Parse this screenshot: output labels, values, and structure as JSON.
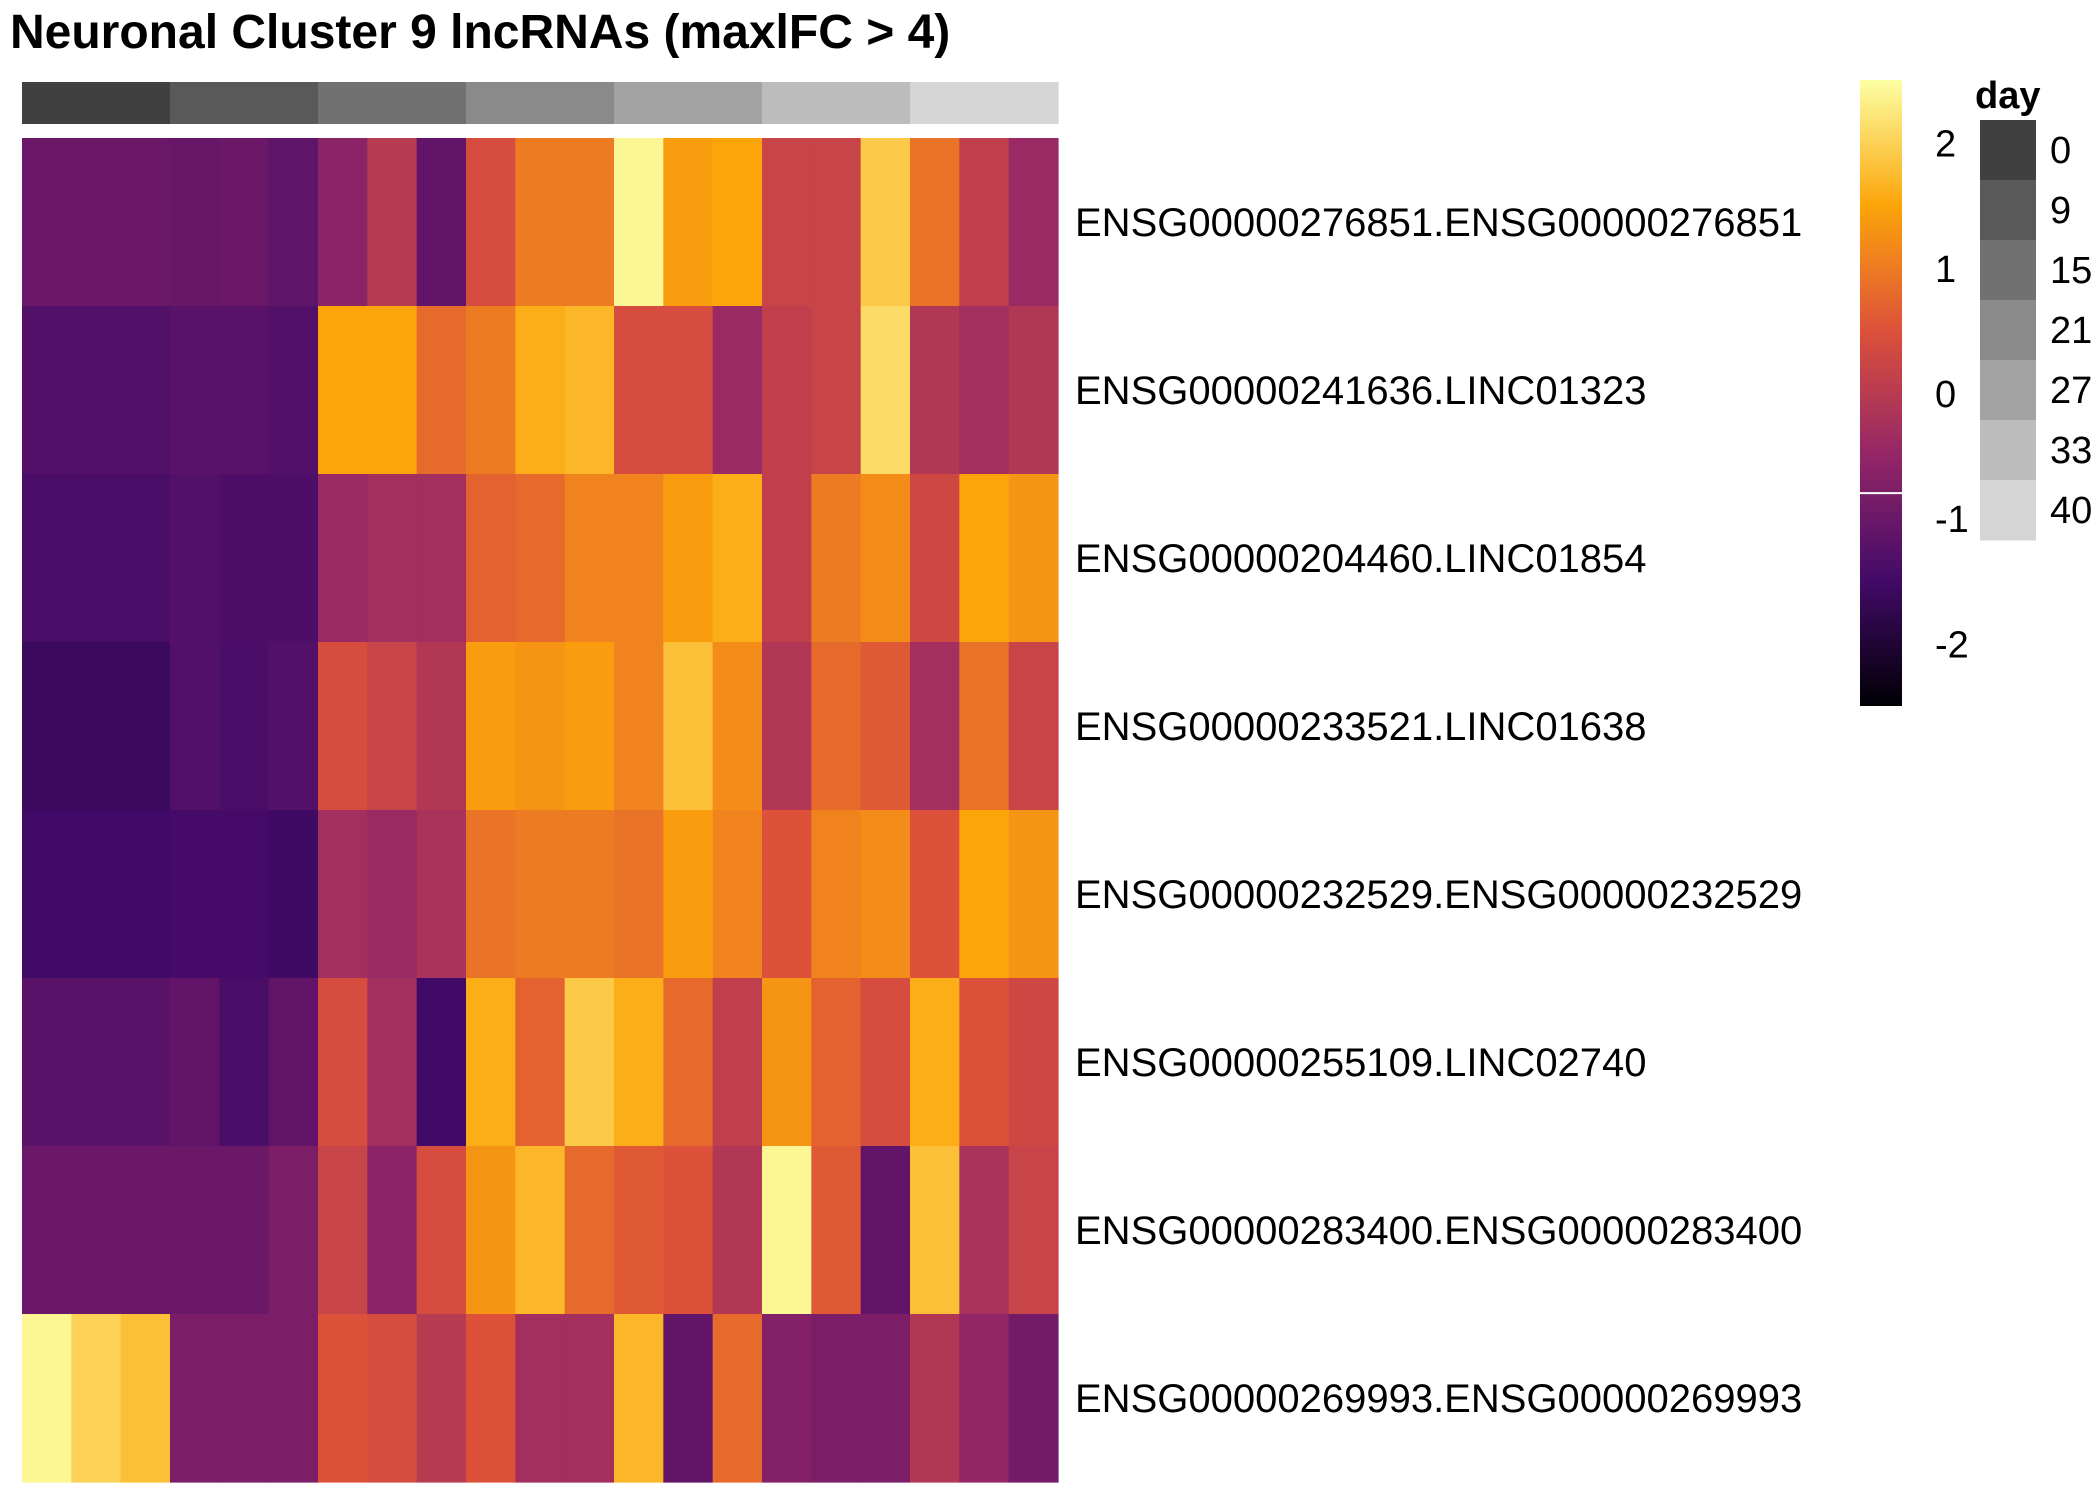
{
  "chart_data": {
    "type": "heatmap",
    "title": "Neuronal Cluster 9 lncRNAs (maxlFC > 4)",
    "colorscale": [
      "#000004",
      "#420a68",
      "#932667",
      "#dd513a",
      "#fca50a",
      "#fcffa4"
    ],
    "color_legend": {
      "range": [
        -2.5,
        2.5
      ],
      "ticks": [
        2,
        1,
        0,
        -1,
        -2
      ],
      "tick_labels": [
        "2",
        "1",
        "0",
        "-1",
        "-2"
      ]
    },
    "day_annotation": {
      "title": "day",
      "levels": [
        "0",
        "9",
        "15",
        "21",
        "27",
        "33",
        "40"
      ],
      "colors": [
        "#404040",
        "#595959",
        "#717171",
        "#8a8a8a",
        "#a3a3a3",
        "#bcbcbc",
        "#d5d5d5"
      ],
      "column_days": [
        "0",
        "0",
        "0",
        "9",
        "9",
        "9",
        "15",
        "15",
        "15",
        "21",
        "21",
        "21",
        "27",
        "27",
        "27",
        "33",
        "33",
        "33",
        "40",
        "40",
        "40"
      ]
    },
    "rows": [
      "ENSG00000276851.ENSG00000276851",
      "ENSG00000241636.LINC01323",
      "ENSG00000204460.LINC01854",
      "ENSG00000233521.LINC01638",
      "ENSG00000232529.ENSG00000232529",
      "ENSG00000255109.LINC02740",
      "ENSG00000283400.ENSG00000283400",
      "ENSG00000269993.ENSG00000269993"
    ],
    "values": [
      [
        -1.0,
        -1.0,
        -1.0,
        -1.05,
        -1.0,
        -1.15,
        -0.6,
        0.0,
        -1.1,
        0.4,
        1.0,
        1.0,
        2.4,
        1.4,
        1.5,
        0.2,
        0.2,
        1.9,
        0.9,
        0.1,
        -0.4
      ],
      [
        -1.3,
        -1.3,
        -1.3,
        -1.2,
        -1.2,
        -1.3,
        1.5,
        1.5,
        0.8,
        1.0,
        1.6,
        1.7,
        0.4,
        0.4,
        -0.4,
        0.1,
        0.2,
        2.1,
        -0.1,
        -0.3,
        -0.1
      ],
      [
        -1.4,
        -1.4,
        -1.4,
        -1.3,
        -1.35,
        -1.35,
        -0.4,
        -0.3,
        -0.3,
        0.7,
        0.8,
        1.1,
        1.1,
        1.4,
        1.6,
        0.1,
        1.0,
        1.2,
        0.3,
        1.5,
        1.3
      ],
      [
        -1.6,
        -1.6,
        -1.6,
        -1.3,
        -1.4,
        -1.3,
        0.4,
        0.2,
        -0.1,
        1.4,
        1.3,
        1.4,
        1.1,
        1.8,
        1.2,
        -0.1,
        0.8,
        0.6,
        -0.3,
        0.9,
        0.2
      ],
      [
        -1.5,
        -1.5,
        -1.5,
        -1.45,
        -1.45,
        -1.55,
        -0.3,
        -0.4,
        -0.2,
        0.9,
        1.0,
        1.0,
        0.9,
        1.4,
        1.1,
        0.5,
        1.1,
        1.2,
        0.5,
        1.5,
        1.3
      ],
      [
        -1.2,
        -1.2,
        -1.2,
        -1.1,
        -1.4,
        -1.1,
        0.4,
        -0.3,
        -1.5,
        1.6,
        0.7,
        1.9,
        1.6,
        0.8,
        0.1,
        1.3,
        0.7,
        0.4,
        1.6,
        0.5,
        0.3
      ],
      [
        -1.0,
        -1.0,
        -1.0,
        -1.0,
        -1.0,
        -0.8,
        0.2,
        -0.6,
        0.4,
        1.3,
        1.7,
        0.8,
        0.6,
        0.5,
        -0.1,
        2.4,
        0.6,
        -1.1,
        1.8,
        -0.2,
        0.2
      ],
      [
        2.4,
        2.0,
        1.8,
        -0.8,
        -0.8,
        -0.8,
        0.5,
        0.4,
        0.0,
        0.5,
        -0.3,
        -0.3,
        1.7,
        -1.1,
        0.8,
        -0.7,
        -0.8,
        -0.8,
        -0.1,
        -0.5,
        -0.9
      ]
    ]
  }
}
